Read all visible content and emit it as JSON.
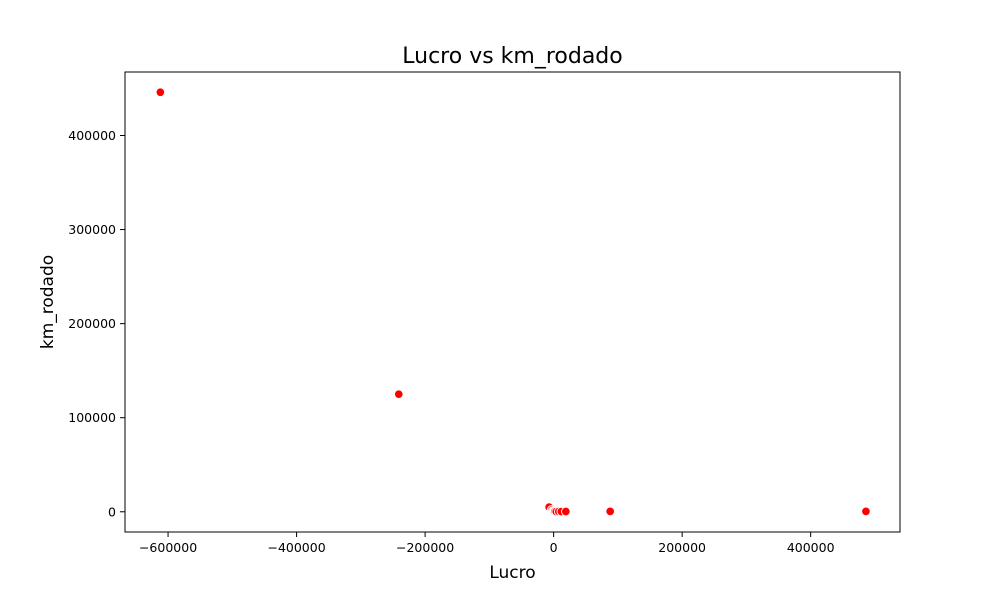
{
  "chart_data": {
    "type": "scatter",
    "title": "Lucro vs km_rodado",
    "xlabel": "Lucro",
    "ylabel": "km_rodado",
    "xlim": [
      -667000,
      539000
    ],
    "ylim": [
      -21500,
      467500
    ],
    "xticks": [
      -600000,
      -400000,
      -200000,
      0,
      200000,
      400000
    ],
    "xtick_labels": [
      "−600000",
      "−400000",
      "−200000",
      "0",
      "200000",
      "400000"
    ],
    "yticks": [
      0,
      100000,
      200000,
      300000,
      400000
    ],
    "ytick_labels": [
      "0",
      "100000",
      "200000",
      "300000",
      "400000"
    ],
    "grid": false,
    "marker_color": "#ff0000",
    "series": [
      {
        "x": [
          -612000,
          -241000,
          -7000,
          -3000,
          -1500,
          0,
          1000,
          2000,
          4000,
          8000,
          12000,
          19000,
          88000,
          486000
        ],
        "y": [
          446000,
          125000,
          5000,
          2000,
          800,
          500,
          300,
          400,
          200,
          300,
          200,
          300,
          400,
          400
        ]
      }
    ]
  }
}
